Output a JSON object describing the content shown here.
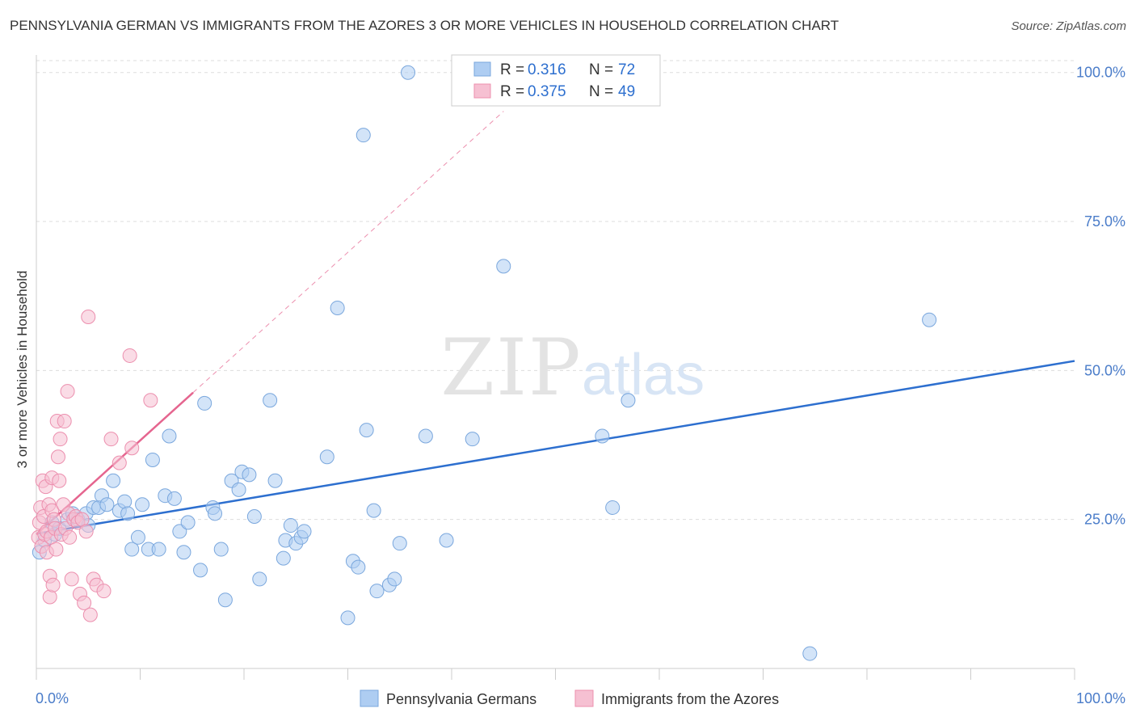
{
  "header": {
    "title": "PENNSYLVANIA GERMAN VS IMMIGRANTS FROM THE AZORES 3 OR MORE VEHICLES IN HOUSEHOLD CORRELATION CHART",
    "source": "Source: ZipAtlas.com"
  },
  "watermark": {
    "zip": "ZIP",
    "atlas": "atlas"
  },
  "colors": {
    "blue_fill": "#aecdf2",
    "blue_stroke": "#7aa7dd",
    "blue_line": "#2d6fcf",
    "pink_fill": "#f6c0d2",
    "pink_stroke": "#ec8fae",
    "pink_line": "#e5658f",
    "axis_label": "#4a7cc9",
    "grid": "#dddddd"
  },
  "chart_data": {
    "type": "scatter",
    "title": "PENNSYLVANIA GERMAN VS IMMIGRANTS FROM THE AZORES 3 OR MORE VEHICLES IN HOUSEHOLD CORRELATION CHART",
    "xlabel": "",
    "ylabel": "3 or more Vehicles in Household",
    "xlim": [
      0,
      100
    ],
    "ylim": [
      0,
      102
    ],
    "x_tick_labels": [
      "0.0%",
      "100.0%"
    ],
    "y_ticks": [
      25,
      50,
      75,
      100
    ],
    "y_tick_labels": [
      "25.0%",
      "50.0%",
      "75.0%",
      "100.0%"
    ],
    "grid": true,
    "legend_position": "top-center",
    "stats": [
      {
        "r_label": "R =",
        "r_value": "0.316",
        "n_label": "N =",
        "n_value": "72"
      },
      {
        "r_label": "R =",
        "r_value": "0.375",
        "n_label": "N =",
        "n_value": "49"
      }
    ],
    "series": [
      {
        "name": "Pennsylvania Germans",
        "color": "blue",
        "trend": {
          "x0": 0,
          "y0": 22.6,
          "x1": 100,
          "y1": 51.6
        },
        "points": [
          [
            0.3,
            19.5
          ],
          [
            0.8,
            21.5
          ],
          [
            1.5,
            24.5
          ],
          [
            1.8,
            22.5
          ],
          [
            2.2,
            23.5
          ],
          [
            3.0,
            25.0
          ],
          [
            3.5,
            26.0
          ],
          [
            4.0,
            25.0
          ],
          [
            4.8,
            26.0
          ],
          [
            5.0,
            24.0
          ],
          [
            5.5,
            27.0
          ],
          [
            6.0,
            27.0
          ],
          [
            6.3,
            29.0
          ],
          [
            6.8,
            27.5
          ],
          [
            7.4,
            31.5
          ],
          [
            8.0,
            26.5
          ],
          [
            8.5,
            28.0
          ],
          [
            8.8,
            26.0
          ],
          [
            9.2,
            20.0
          ],
          [
            9.8,
            22.0
          ],
          [
            10.2,
            27.5
          ],
          [
            10.8,
            20.0
          ],
          [
            11.2,
            35.0
          ],
          [
            11.8,
            20.0
          ],
          [
            12.4,
            29.0
          ],
          [
            12.8,
            39.0
          ],
          [
            13.3,
            28.5
          ],
          [
            13.8,
            23.0
          ],
          [
            14.2,
            19.5
          ],
          [
            14.6,
            24.5
          ],
          [
            15.8,
            16.5
          ],
          [
            16.2,
            44.5
          ],
          [
            17.0,
            27.0
          ],
          [
            17.2,
            26.0
          ],
          [
            17.8,
            20.0
          ],
          [
            18.2,
            11.5
          ],
          [
            18.8,
            31.5
          ],
          [
            19.5,
            30.0
          ],
          [
            19.8,
            33.0
          ],
          [
            20.5,
            32.5
          ],
          [
            21.0,
            25.5
          ],
          [
            21.5,
            15.0
          ],
          [
            22.5,
            45.0
          ],
          [
            23.0,
            31.5
          ],
          [
            23.8,
            18.5
          ],
          [
            24.0,
            21.5
          ],
          [
            24.5,
            24.0
          ],
          [
            25.0,
            21.0
          ],
          [
            25.5,
            22.0
          ],
          [
            25.8,
            23.0
          ],
          [
            28.0,
            35.5
          ],
          [
            29.0,
            60.5
          ],
          [
            30.0,
            8.5
          ],
          [
            30.5,
            18.0
          ],
          [
            31.0,
            17.0
          ],
          [
            31.5,
            89.5
          ],
          [
            31.8,
            40.0
          ],
          [
            32.5,
            26.5
          ],
          [
            32.8,
            13.0
          ],
          [
            34.0,
            14.0
          ],
          [
            34.5,
            15.0
          ],
          [
            35.0,
            21.0
          ],
          [
            35.8,
            100.0
          ],
          [
            37.5,
            39.0
          ],
          [
            39.5,
            21.5
          ],
          [
            42.0,
            38.5
          ],
          [
            45.0,
            67.5
          ],
          [
            54.5,
            39.0
          ],
          [
            55.5,
            27.0
          ],
          [
            57.0,
            45.0
          ],
          [
            74.5,
            2.5
          ],
          [
            86.0,
            58.5
          ]
        ]
      },
      {
        "name": "Immigrants from the Azores",
        "color": "pink",
        "trend": {
          "x0": 0,
          "y0": 22.5,
          "x1": 15.1,
          "y1": 46.3,
          "ext_x1": 45.0,
          "ext_y1": 93.5
        },
        "points": [
          [
            0.2,
            22.0
          ],
          [
            0.3,
            24.5
          ],
          [
            0.4,
            27.0
          ],
          [
            0.5,
            20.5
          ],
          [
            0.6,
            31.5
          ],
          [
            0.7,
            25.5
          ],
          [
            0.8,
            22.5
          ],
          [
            0.9,
            30.5
          ],
          [
            1.0,
            23.0
          ],
          [
            1.0,
            19.5
          ],
          [
            1.2,
            27.5
          ],
          [
            1.3,
            15.5
          ],
          [
            1.3,
            12.0
          ],
          [
            1.4,
            22.0
          ],
          [
            1.5,
            32.0
          ],
          [
            1.5,
            26.5
          ],
          [
            1.6,
            14.0
          ],
          [
            1.7,
            25.0
          ],
          [
            1.8,
            23.5
          ],
          [
            1.9,
            20.0
          ],
          [
            2.0,
            41.5
          ],
          [
            2.1,
            35.5
          ],
          [
            2.2,
            31.5
          ],
          [
            2.3,
            38.5
          ],
          [
            2.4,
            22.5
          ],
          [
            2.6,
            27.5
          ],
          [
            2.7,
            41.5
          ],
          [
            2.8,
            23.5
          ],
          [
            3.0,
            46.5
          ],
          [
            3.1,
            26.0
          ],
          [
            3.2,
            22.0
          ],
          [
            3.4,
            15.0
          ],
          [
            3.6,
            25.0
          ],
          [
            3.8,
            25.5
          ],
          [
            4.0,
            24.5
          ],
          [
            4.2,
            12.5
          ],
          [
            4.4,
            25.0
          ],
          [
            4.6,
            11.0
          ],
          [
            4.8,
            23.0
          ],
          [
            5.0,
            59.0
          ],
          [
            5.2,
            9.0
          ],
          [
            5.5,
            15.0
          ],
          [
            5.8,
            14.0
          ],
          [
            6.5,
            13.0
          ],
          [
            7.2,
            38.5
          ],
          [
            8.0,
            34.5
          ],
          [
            9.0,
            52.5
          ],
          [
            9.2,
            37.0
          ],
          [
            11.0,
            45.0
          ]
        ]
      }
    ]
  }
}
